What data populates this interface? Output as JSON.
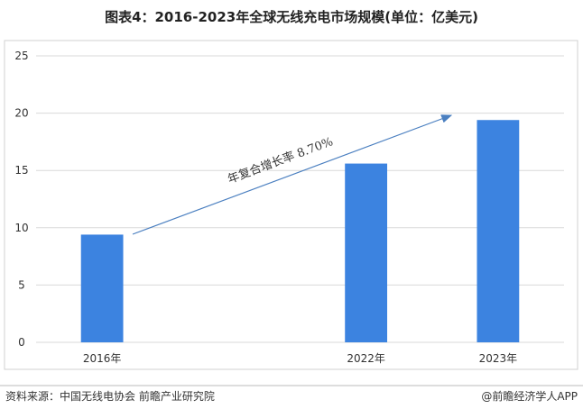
{
  "chart_data": {
    "type": "bar",
    "title": "图表4：2016-2023年全球无线充电市场规模(单位：亿美元)",
    "categories": [
      "2016年",
      null,
      "2022年",
      "2023年"
    ],
    "values": [
      9.4,
      null,
      15.6,
      19.4
    ],
    "color": "#3c83e0",
    "ylim": [
      0,
      25
    ],
    "yticks": [
      0,
      5,
      10,
      15,
      20,
      25
    ],
    "grid": true,
    "annotation": "年复合增长率 8.70%",
    "source": "资料来源：中国无线电协会 前瞻产业研究院",
    "credit": "@前瞻经济学人APP"
  }
}
